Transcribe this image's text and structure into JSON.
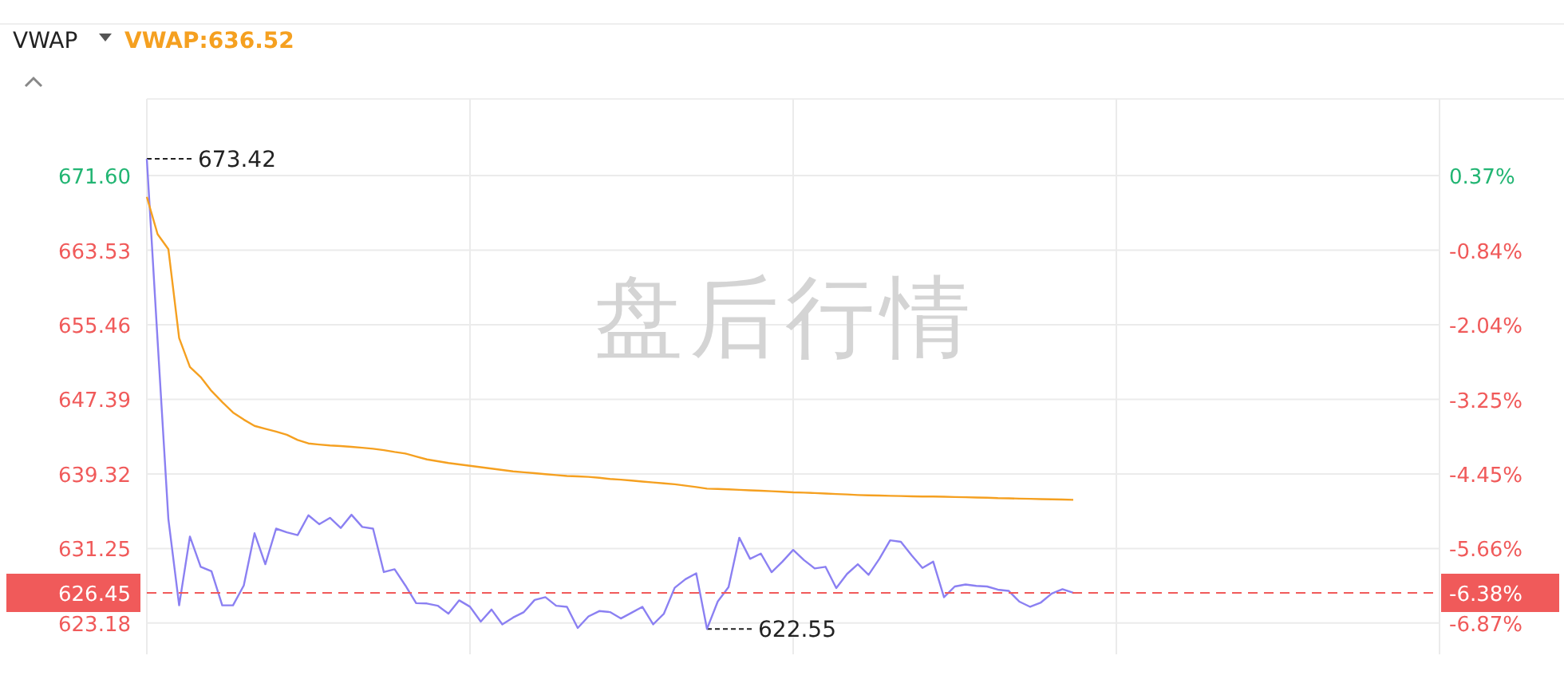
{
  "chart_data": {
    "type": "line",
    "title": "VWAP",
    "categories": [
      null,
      null,
      null,
      null,
      null,
      null,
      null,
      null,
      null,
      null,
      null,
      null,
      null,
      null,
      null,
      null,
      null,
      null,
      null,
      null,
      null,
      null,
      null,
      null,
      null,
      null,
      null,
      null,
      null,
      null,
      null,
      null,
      null,
      null,
      null,
      null,
      null,
      null,
      null,
      null,
      null,
      null,
      null,
      null,
      null,
      null,
      null,
      null,
      null,
      null,
      null,
      null,
      null,
      null,
      null,
      null,
      null,
      null,
      null,
      null,
      null,
      null,
      null,
      null,
      null,
      null,
      null,
      null,
      null,
      null,
      null,
      null,
      null,
      null,
      null,
      null,
      null,
      null,
      null,
      null,
      null,
      null,
      null,
      null,
      null,
      null,
      null,
      null,
      null,
      null,
      null,
      null,
      null,
      null,
      null,
      null,
      null,
      null,
      null,
      null,
      null,
      null,
      null,
      null,
      null,
      null,
      null,
      null,
      null,
      null,
      null,
      null,
      null,
      null,
      null,
      null,
      null,
      null,
      null,
      null,
      null
    ],
    "series": [
      {
        "name": null,
        "color": "#8b80f2",
        "values": [
          673.42,
          653.75,
          634.45,
          625.1,
          632.55,
          629.27,
          628.8,
          625.1,
          625.1,
          627.25,
          632.9,
          629.55,
          633.4,
          633.0,
          632.7,
          634.85,
          633.88,
          634.57,
          633.47,
          634.9,
          633.58,
          633.4,
          628.7,
          629.0,
          627.25,
          625.34,
          625.3,
          625.06,
          624.2,
          625.64,
          624.95,
          623.34,
          624.65,
          623.04,
          623.78,
          624.37,
          625.68,
          625.98,
          625.06,
          624.94,
          622.65,
          623.9,
          624.48,
          624.37,
          623.68,
          624.3,
          624.94,
          623.04,
          624.2,
          627.0,
          627.93,
          628.57,
          622.55,
          625.52,
          627.07,
          632.42,
          630.13,
          630.7,
          628.69,
          629.83,
          631.1,
          630.0,
          629.09,
          629.27,
          626.97,
          628.5,
          629.55,
          628.4,
          630.13,
          632.14,
          631.98,
          630.5,
          629.15,
          629.83,
          625.98,
          627.14,
          627.36,
          627.2,
          627.14,
          626.8,
          626.67,
          625.5,
          624.94,
          625.41,
          626.38,
          626.85,
          626.45,
          null,
          null,
          null,
          null,
          null,
          null,
          null,
          null,
          null,
          null,
          null,
          null,
          null,
          null,
          null,
          null,
          null,
          null,
          null,
          null,
          null,
          null,
          null,
          null,
          null,
          null,
          null,
          null,
          null,
          null,
          null,
          null,
          null,
          null
        ]
      },
      {
        "name": "VWAP:636.52",
        "color": "#f5a020",
        "values": [
          669.3,
          665.26,
          663.65,
          654.03,
          650.9,
          649.8,
          648.3,
          647.1,
          645.97,
          645.2,
          644.52,
          644.2,
          643.9,
          643.55,
          643.0,
          642.62,
          642.5,
          642.4,
          642.34,
          642.25,
          642.15,
          642.05,
          641.9,
          641.7,
          641.53,
          641.2,
          640.89,
          640.7,
          640.5,
          640.35,
          640.2,
          640.05,
          639.9,
          639.75,
          639.6,
          639.5,
          639.4,
          639.29,
          639.2,
          639.1,
          639.05,
          639.0,
          638.9,
          638.77,
          638.7,
          638.6,
          638.5,
          638.4,
          638.3,
          638.2,
          638.05,
          637.9,
          637.73,
          637.7,
          637.65,
          637.6,
          637.55,
          637.5,
          637.45,
          637.4,
          637.33,
          637.3,
          637.25,
          637.2,
          637.15,
          637.1,
          637.04,
          637.0,
          636.98,
          636.95,
          636.93,
          636.9,
          636.88,
          636.87,
          636.85,
          636.82,
          636.8,
          636.77,
          636.75,
          636.7,
          636.68,
          636.65,
          636.63,
          636.6,
          636.58,
          636.55,
          636.52,
          null,
          null,
          null,
          null,
          null,
          null,
          null,
          null,
          null,
          null,
          null,
          null,
          null,
          null,
          null,
          null,
          null,
          null,
          null,
          null,
          null,
          null,
          null,
          null,
          null,
          null,
          null,
          null,
          null,
          null,
          null,
          null,
          null,
          null
        ]
      }
    ],
    "ylim": [
      619.8,
      679.9
    ],
    "yticks": [
      623.18,
      631.25,
      639.32,
      647.39,
      655.46,
      663.53,
      {
        "value": 671.6,
        "label": "671.60"
      }
    ],
    "y2lim": [
      -7.37,
      1.61
    ],
    "y2ticks": [
      {
        "value": -6.87,
        "label": "-6.87%"
      },
      {
        "value": -5.66,
        "label": "-5.66%"
      },
      {
        "value": -4.45,
        "label": "-4.45%"
      },
      {
        "value": -3.25,
        "label": "-3.25%"
      },
      {
        "value": -2.04,
        "label": "-2.04%"
      },
      {
        "value": -0.84,
        "label": "-0.84%"
      },
      {
        "value": 0.37,
        "label": "0.37%"
      }
    ],
    "ref_lines": [
      {
        "axis": "y",
        "value": 626.45,
        "label": "626.45",
        "color": "#f05a5a",
        "line_style": "dashed"
      }
    ],
    "annotations": [
      "673.42",
      "622.55",
      "盘后行情",
      "-6.38%"
    ],
    "grid": true,
    "legend": "top left",
    "tick_labels": "y",
    "marker": "none",
    "line_style": "solid"
  }
}
